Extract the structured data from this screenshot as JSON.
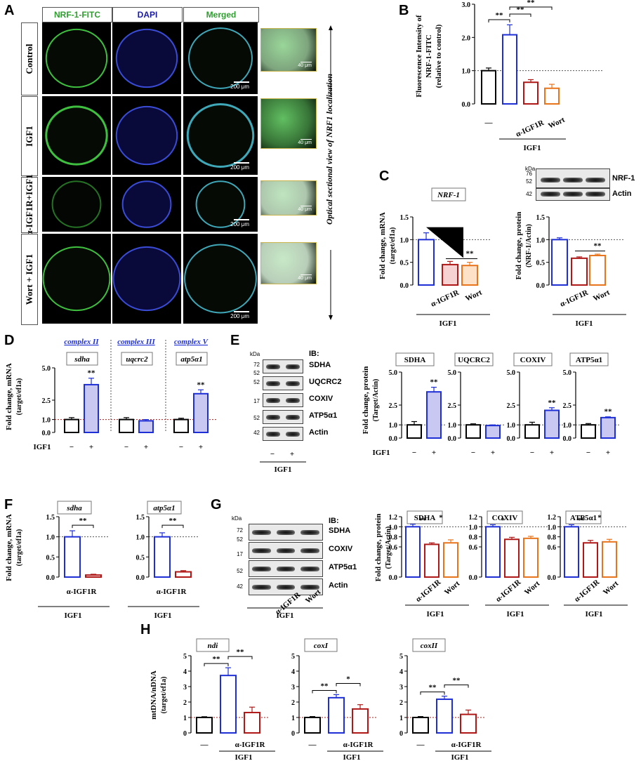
{
  "panels": {
    "A": "A",
    "B": "B",
    "C": "C",
    "D": "D",
    "E": "E",
    "F": "F",
    "G": "G",
    "H": "H"
  },
  "panelA": {
    "channels": [
      "NRF-1-FITC",
      "DAPI",
      "Merged"
    ],
    "channel_colors": [
      "#2e9e2e",
      "#1a1aa8",
      "#2e9e2e"
    ],
    "rows": [
      "Control",
      "IGF1",
      "α-IGF1R+IGF1",
      "Wort + IGF1"
    ],
    "scale_main": "200 μm",
    "scale_zoom": "40 μm",
    "side_label": "Optical sectional view of NRF1 localization"
  },
  "blotC": {
    "kda": "kDa",
    "mw": [
      "76",
      "52",
      "42"
    ],
    "labels": [
      "NRF-1",
      "Actin"
    ]
  },
  "blotE": {
    "kda": "kDa",
    "ib": "IB:",
    "mw": [
      "72",
      "52",
      "52",
      "17",
      "52",
      "42"
    ],
    "labels": [
      "SDHA",
      "UQCRC2",
      "COXIV",
      "ATP5α1",
      "Actin"
    ],
    "lanes": [
      "−",
      "+"
    ],
    "group": "IGF1"
  },
  "blotG": {
    "kda": "kDa",
    "ib": "IB:",
    "mw": [
      "72",
      "52",
      "17",
      "52",
      "42"
    ],
    "labels": [
      "SDHA",
      "COXIV",
      "ATP5α1",
      "Actin"
    ],
    "lanes": [
      "α-IGF1R",
      "Wort"
    ],
    "group": "IGF1"
  },
  "colors": {
    "control": "#000000",
    "igf1": "#1f2fd6",
    "aigf1r": "#b01818",
    "wort": "#e8741c",
    "igf1_fill": "#c8c8f2",
    "aigf1r_fill": "#f7d2d2",
    "wort_fill": "#fde2c8"
  },
  "chart_data": [
    {
      "panel": "B",
      "type": "bar",
      "ylabel": "Fluorescence Intensity of NRF-1-FITC (relative to control)",
      "ylim": [
        0,
        3
      ],
      "yticks": [
        "0.0",
        "1.0",
        "2.0",
        "3.0"
      ],
      "categories": [
        "—",
        "",
        "α-IGF1R",
        "Wort"
      ],
      "values": [
        1.0,
        2.08,
        0.65,
        0.47
      ],
      "errors": [
        0.08,
        0.3,
        0.08,
        0.12
      ],
      "group_label": "IGF1",
      "significance": [
        "**",
        "**",
        "**"
      ]
    },
    {
      "panel": "C-mRNA",
      "type": "bar",
      "title": "NRF-1",
      "ylabel": "Fold change, mRNA",
      "ylabel2": "(target/ef1a)",
      "ylim": [
        0,
        1.5
      ],
      "yticks": [
        "0.0",
        "0.5",
        "1.0",
        "1.5"
      ],
      "categories": [
        "",
        "α-IGF1R",
        "Wort"
      ],
      "values": [
        1.0,
        0.45,
        0.43
      ],
      "errors": [
        0.15,
        0.07,
        0.07
      ],
      "group_label": "IGF1",
      "significance": [
        "**"
      ]
    },
    {
      "panel": "C-protein",
      "type": "bar",
      "ylabel": "Fold change, protein",
      "ylabel2": "(NRF-1/Actin)",
      "ylim": [
        0,
        1.5
      ],
      "yticks": [
        "0.0",
        "0.5",
        "1.0",
        "1.5"
      ],
      "categories": [
        "",
        "α-IGF1R",
        "Wort"
      ],
      "values": [
        1.0,
        0.59,
        0.65
      ],
      "errors": [
        0.04,
        0.03,
        0.03
      ],
      "group_label": "IGF1",
      "significance": [
        "**"
      ]
    },
    {
      "panel": "D",
      "type": "bar",
      "ylabel": "Fold change, mRNA",
      "ylabel2": "(target/ef1a)",
      "ylim": [
        0,
        5
      ],
      "yticks": [
        "0.0",
        "1.0",
        "2.5",
        "5.0"
      ],
      "complexes": [
        "complex II",
        "complex III",
        "complex V"
      ],
      "genes": [
        "sdha",
        "uqcrc2",
        "atp5α1"
      ],
      "values": [
        [
          1.0,
          3.7
        ],
        [
          1.0,
          0.9
        ],
        [
          1.0,
          3.0
        ]
      ],
      "errors": [
        [
          0.15,
          0.5
        ],
        [
          0.15,
          0.1
        ],
        [
          0.1,
          0.3
        ]
      ],
      "lanes": [
        "−",
        "+"
      ],
      "row_label": "IGF1",
      "significance": [
        "**",
        "",
        "**"
      ]
    },
    {
      "panel": "E-bars",
      "type": "bar",
      "ylabel": "Fold change, protein",
      "ylabel2": "(Target/Actin)",
      "ylim": [
        0,
        5
      ],
      "yticks": [
        "0.0",
        "1.0",
        "2.5",
        "5.0"
      ],
      "targets": [
        "SDHA",
        "UQCRC2",
        "COXIV",
        "ATP5α1"
      ],
      "values": [
        [
          1.0,
          3.5
        ],
        [
          1.0,
          0.95
        ],
        [
          1.0,
          2.1
        ],
        [
          1.0,
          1.55
        ]
      ],
      "errors": [
        [
          0.25,
          0.35
        ],
        [
          0.08,
          0.05
        ],
        [
          0.2,
          0.2
        ],
        [
          0.1,
          0.06
        ]
      ],
      "lanes": [
        "−",
        "+"
      ],
      "row_label": "IGF1",
      "significance": [
        "**",
        "",
        "**",
        "**"
      ]
    },
    {
      "panel": "F",
      "type": "bar",
      "ylabel": "Fold change, mRNA",
      "ylabel2": "(target/ef1a)",
      "ylim": [
        0,
        1.5
      ],
      "yticks": [
        "0.0",
        "0.5",
        "1.0",
        "1.5"
      ],
      "genes": [
        "sdha",
        "atp5α1"
      ],
      "values": [
        [
          1.0,
          0.05
        ],
        [
          1.0,
          0.13
        ]
      ],
      "errors": [
        [
          0.15,
          0.02
        ],
        [
          0.1,
          0.03
        ]
      ],
      "categories": [
        "",
        "α-IGF1R"
      ],
      "group_label": "IGF1",
      "significance": [
        "**",
        "**"
      ]
    },
    {
      "panel": "G-bars",
      "type": "bar",
      "ylabel": "Fold change, protein",
      "ylabel2": "(Target/Actin)",
      "ylim": [
        0,
        1.2
      ],
      "yticks": [
        "0.0",
        "0.6",
        "0.8",
        "1.0",
        "1.2"
      ],
      "targets": [
        "SDHA",
        "COXIV",
        "ATP5α1"
      ],
      "values": [
        [
          1.0,
          0.65,
          0.68
        ],
        [
          1.0,
          0.75,
          0.77
        ],
        [
          1.0,
          0.68,
          0.7
        ]
      ],
      "errors": [
        [
          0.05,
          0.03,
          0.06
        ],
        [
          0.04,
          0.04,
          0.04
        ],
        [
          0.04,
          0.05,
          0.05
        ]
      ],
      "categories": [
        "",
        "α-IGF1R",
        "Wort"
      ],
      "group_label": "IGF1",
      "significance": [
        [
          "**",
          "*"
        ],
        [
          "*"
        ],
        [
          "**",
          "*"
        ]
      ]
    },
    {
      "panel": "H",
      "type": "bar",
      "ylabel": "mtDNA/nDNA",
      "ylabel2": "(target/ef1a)",
      "ylim": [
        0,
        5
      ],
      "yticks": [
        "0",
        "1",
        "2",
        "3",
        "4",
        "5"
      ],
      "genes": [
        "ndi",
        "coxI",
        "coxII"
      ],
      "values": [
        [
          1.0,
          3.72,
          1.32
        ],
        [
          1.0,
          2.28,
          1.55
        ],
        [
          1.0,
          2.18,
          1.2
        ]
      ],
      "errors": [
        [
          0.05,
          0.5,
          0.35
        ],
        [
          0.06,
          0.2,
          0.28
        ],
        [
          0.06,
          0.2,
          0.28
        ]
      ],
      "categories": [
        "—",
        "",
        "α-IGF1R"
      ],
      "group_label": "IGF1",
      "significance": [
        [
          "**",
          "**"
        ],
        [
          "**",
          "*"
        ],
        [
          "**",
          "**"
        ]
      ]
    }
  ]
}
